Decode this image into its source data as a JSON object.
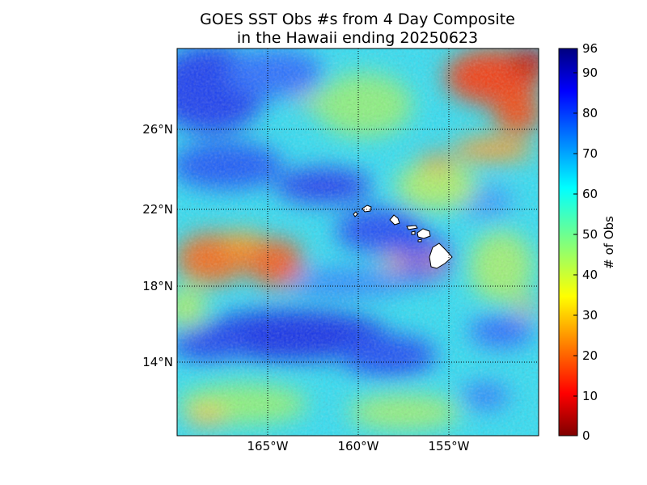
{
  "figure": {
    "title_line1": "GOES SST Obs #s from 4 Day Composite",
    "title_line2": "in the Hawaii ending 20250623"
  },
  "map": {
    "lat_labels": [
      "26°N",
      "22°N",
      "18°N",
      "14°N"
    ],
    "lon_labels": [
      "165°W",
      "160°W",
      "155°W"
    ],
    "land_color": "#ffffff",
    "coast_color": "#000000",
    "grid_style": "dotted black"
  },
  "colorbar": {
    "label": "# of Obs",
    "tick_labels": [
      "96",
      "90",
      "80",
      "70",
      "60",
      "50",
      "40",
      "30",
      "20",
      "10",
      "0"
    ],
    "min": 0,
    "max": 96,
    "colormap": "jet",
    "colors": [
      "#00007f",
      "#0000ff",
      "#007fff",
      "#00ffff",
      "#7fff7f",
      "#ffff00",
      "#ff7f00",
      "#ff0000",
      "#7f0000"
    ]
  }
}
